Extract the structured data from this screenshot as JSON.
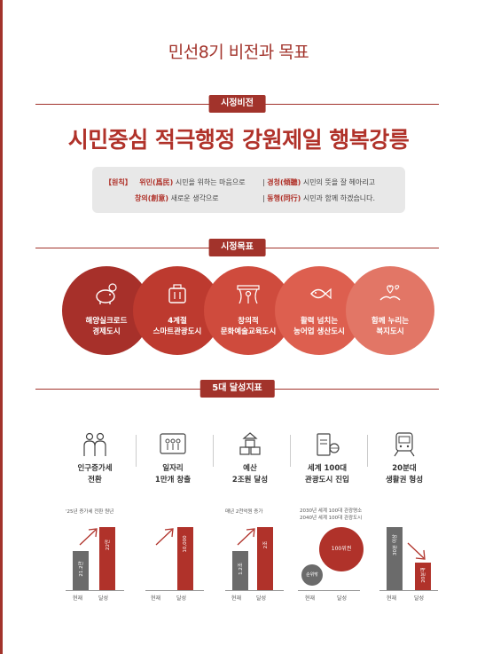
{
  "page": {
    "title": "민선8기 비전과 목표"
  },
  "vision": {
    "tag": "시정비전",
    "statement": "시민중심 적극행정 강원제일 행복강릉"
  },
  "principle": {
    "label": "【원칙】",
    "items": [
      {
        "term": "위민(爲民)",
        "text": " 시민을 위하는 마음으로"
      },
      {
        "term": "경청(傾聽)",
        "text": " 시민의 뜻을 잘 헤아리고"
      },
      {
        "term": "창의(創意)",
        "text": " 새로운 생각으로"
      },
      {
        "term": "동행(同行)",
        "text": " 시민과 함께 하겠습니다."
      }
    ],
    "separator": "|"
  },
  "goals": {
    "tag": "시정목표",
    "items": [
      {
        "line1": "해양실크로드",
        "line2": "경제도시",
        "color": "#a7302a",
        "icon": "piggy-bank-icon"
      },
      {
        "line1": "4계절",
        "line2": "스마트관광도시",
        "color": "#bd3a2f",
        "icon": "luggage-icon"
      },
      {
        "line1": "창의적",
        "line2": "문화예술교육도시",
        "color": "#cf4b3d",
        "icon": "theater-icon"
      },
      {
        "line1": "활력 넘치는",
        "line2": "농어업 생산도시",
        "color": "#dd5f4f",
        "icon": "fish-icon"
      },
      {
        "line1": "함께 누리는",
        "line2": "복지도시",
        "color": "#e27666",
        "icon": "care-hands-icon"
      }
    ]
  },
  "metrics": {
    "tag": "5대 달성지표",
    "items": [
      {
        "line1": "인구증가세",
        "line2": "전환",
        "icon": "people-icon"
      },
      {
        "line1": "일자리",
        "line2": "1만개 창출",
        "icon": "workers-icon"
      },
      {
        "line1": "예산",
        "line2": "2조원 달성",
        "icon": "money-stack-icon"
      },
      {
        "line1": "세계 100대",
        "line2": "관광도시 진입",
        "icon": "passport-icon"
      },
      {
        "line1": "20분대",
        "line2": "생활권 형성",
        "icon": "train-icon"
      }
    ],
    "x_labels": {
      "current": "현재",
      "target": "달성"
    }
  },
  "chart_data": [
    {
      "type": "bar",
      "note": "'25년 증가세 전환 원년",
      "categories": [
        "현재",
        "달성"
      ],
      "values": [
        21.2,
        22
      ],
      "value_labels": [
        "21.2만",
        "22만"
      ],
      "unit": "만"
    },
    {
      "type": "bar",
      "categories": [
        "현재",
        "달성"
      ],
      "values": [
        0,
        10000
      ],
      "value_labels": [
        "",
        "10,000"
      ]
    },
    {
      "type": "bar",
      "note": "매년 2천억원 증가",
      "categories": [
        "현재",
        "달성"
      ],
      "values": [
        1.2,
        2
      ],
      "value_labels": [
        "1.2조",
        "2조"
      ],
      "unit": "조"
    },
    {
      "type": "bubble",
      "note_lines": [
        "2030년 세계 100대 관광명소",
        "2040년 세계 100대 관광도시"
      ],
      "categories": [
        "현재",
        "달성"
      ],
      "value_labels": [
        "순위밖",
        "100위권"
      ]
    },
    {
      "type": "bar",
      "categories": [
        "현재",
        "달성"
      ],
      "values": [
        30,
        20
      ],
      "value_labels": [
        "30분 이상",
        "20분대"
      ],
      "unit": "분"
    }
  ]
}
